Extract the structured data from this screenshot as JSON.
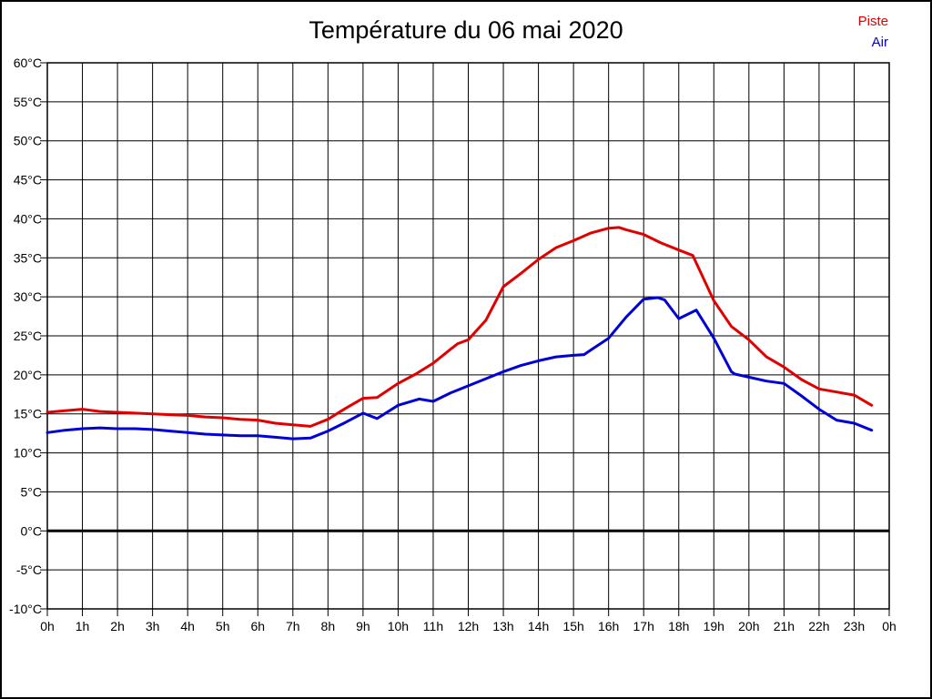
{
  "chart_data": {
    "type": "line",
    "title": "Température du 06 mai 2020",
    "grid": "on",
    "legend_position": "top-right",
    "x_axis": {
      "unit": "h",
      "min": 0,
      "max": 24,
      "tick_step": 1,
      "tick_labels": [
        "0h",
        "1h",
        "2h",
        "3h",
        "4h",
        "5h",
        "6h",
        "7h",
        "8h",
        "9h",
        "10h",
        "11h",
        "12h",
        "13h",
        "14h",
        "15h",
        "16h",
        "17h",
        "18h",
        "19h",
        "20h",
        "21h",
        "22h",
        "23h",
        "0h"
      ]
    },
    "y_axis": {
      "unit": "°C",
      "min": -10,
      "max": 60,
      "tick_step": 5,
      "tick_labels": [
        "60°C",
        "55°C",
        "50°C",
        "45°C",
        "40°C",
        "35°C",
        "30°C",
        "25°C",
        "20°C",
        "15°C",
        "10°C",
        "5°C",
        "0°C",
        "-5°C",
        "-10°C"
      ],
      "zero_line_emphasized": true
    },
    "series": [
      {
        "name": "Piste",
        "color": "#e00000",
        "points": [
          [
            0,
            15.2
          ],
          [
            0.5,
            15.4
          ],
          [
            1,
            15.6
          ],
          [
            1.5,
            15.3
          ],
          [
            2,
            15.2
          ],
          [
            2.5,
            15.1
          ],
          [
            3,
            15.0
          ],
          [
            3.5,
            14.9
          ],
          [
            4,
            14.8
          ],
          [
            4.5,
            14.6
          ],
          [
            5,
            14.5
          ],
          [
            5.5,
            14.3
          ],
          [
            6,
            14.2
          ],
          [
            6.5,
            13.8
          ],
          [
            7,
            13.6
          ],
          [
            7.5,
            13.4
          ],
          [
            8,
            14.3
          ],
          [
            8.5,
            15.7
          ],
          [
            9,
            17.0
          ],
          [
            9.4,
            17.1
          ],
          [
            10,
            18.9
          ],
          [
            10.5,
            20.1
          ],
          [
            11,
            21.5
          ],
          [
            11.5,
            23.3
          ],
          [
            11.7,
            24.0
          ],
          [
            12,
            24.5
          ],
          [
            12.5,
            27.0
          ],
          [
            13,
            31.3
          ],
          [
            13.5,
            33.0
          ],
          [
            14,
            34.8
          ],
          [
            14.5,
            36.3
          ],
          [
            15,
            37.2
          ],
          [
            15.5,
            38.2
          ],
          [
            16,
            38.8
          ],
          [
            16.3,
            38.9
          ],
          [
            16.5,
            38.6
          ],
          [
            17,
            38.0
          ],
          [
            17.5,
            36.9
          ],
          [
            18,
            36.0
          ],
          [
            18.4,
            35.3
          ],
          [
            19,
            29.5
          ],
          [
            19.5,
            26.2
          ],
          [
            20,
            24.5
          ],
          [
            20.5,
            22.3
          ],
          [
            21,
            21.0
          ],
          [
            21.5,
            19.4
          ],
          [
            22,
            18.2
          ],
          [
            22.5,
            17.8
          ],
          [
            23,
            17.4
          ],
          [
            23.5,
            16.1
          ]
        ]
      },
      {
        "name": "Air",
        "color": "#0000d6",
        "points": [
          [
            0,
            12.6
          ],
          [
            0.5,
            12.9
          ],
          [
            1,
            13.1
          ],
          [
            1.5,
            13.2
          ],
          [
            2,
            13.1
          ],
          [
            2.5,
            13.1
          ],
          [
            3,
            13.0
          ],
          [
            3.5,
            12.8
          ],
          [
            4,
            12.6
          ],
          [
            4.5,
            12.4
          ],
          [
            5,
            12.3
          ],
          [
            5.5,
            12.2
          ],
          [
            6,
            12.2
          ],
          [
            6.5,
            12.0
          ],
          [
            7,
            11.8
          ],
          [
            7.5,
            11.9
          ],
          [
            8,
            12.8
          ],
          [
            8.5,
            13.9
          ],
          [
            9,
            15.1
          ],
          [
            9.4,
            14.4
          ],
          [
            10,
            16.1
          ],
          [
            10.6,
            16.9
          ],
          [
            11,
            16.6
          ],
          [
            11.5,
            17.7
          ],
          [
            12,
            18.6
          ],
          [
            12.5,
            19.5
          ],
          [
            13,
            20.4
          ],
          [
            13.5,
            21.2
          ],
          [
            14,
            21.8
          ],
          [
            14.5,
            22.3
          ],
          [
            15,
            22.5
          ],
          [
            15.3,
            22.6
          ],
          [
            15.5,
            23.2
          ],
          [
            16,
            24.7
          ],
          [
            16.5,
            27.4
          ],
          [
            17,
            29.7
          ],
          [
            17.4,
            29.9
          ],
          [
            17.6,
            29.6
          ],
          [
            18,
            27.2
          ],
          [
            18.5,
            28.3
          ],
          [
            19,
            24.7
          ],
          [
            19.5,
            20.4
          ],
          [
            19.6,
            20.1
          ],
          [
            20,
            19.7
          ],
          [
            20.5,
            19.2
          ],
          [
            21,
            18.9
          ],
          [
            21.5,
            17.3
          ],
          [
            22,
            15.6
          ],
          [
            22.5,
            14.2
          ],
          [
            23,
            13.8
          ],
          [
            23.5,
            12.9
          ]
        ]
      }
    ]
  }
}
